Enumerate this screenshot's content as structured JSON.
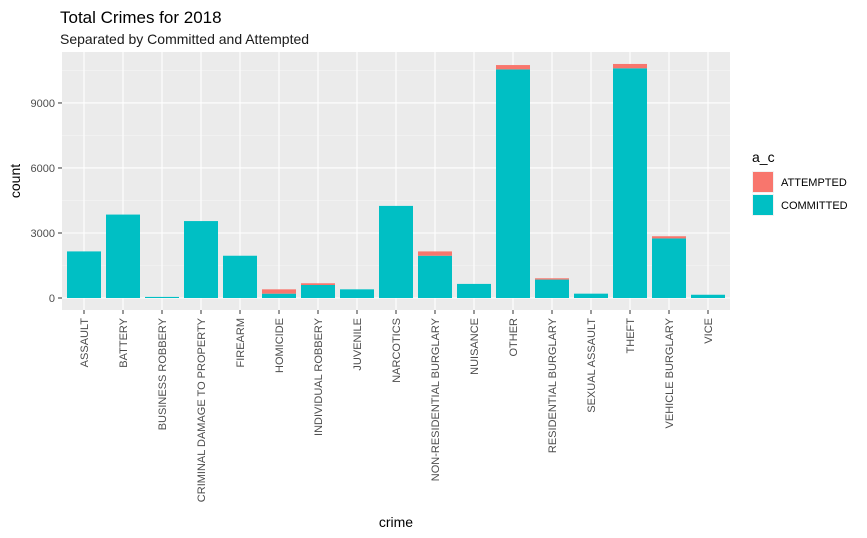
{
  "chart_data": {
    "type": "bar",
    "stacked": true,
    "title": "Total Crimes for 2018",
    "subtitle": "Separated by Committed and Attempted",
    "xlabel": "crime",
    "ylabel": "count",
    "ylim": [
      0,
      11200
    ],
    "yticks": [
      0,
      3000,
      6000,
      9000
    ],
    "grid": true,
    "legend": {
      "title": "a_c",
      "position": "right",
      "entries": [
        {
          "name": "ATTEMPTED",
          "color": "#F8766D"
        },
        {
          "name": "COMMITTED",
          "color": "#00BFC4"
        }
      ]
    },
    "categories": [
      "ASSAULT",
      "BATTERY",
      "BUSINESS ROBBERY",
      "CRIMINAL DAMAGE TO PROPERTY",
      "FIREARM",
      "HOMICIDE",
      "INDIVIDUAL ROBBERY",
      "JUVENILE",
      "NARCOTICS",
      "NON-RESIDENTIAL BURGLARY",
      "NUISANCE",
      "OTHER",
      "RESIDENTIAL BURGLARY",
      "SEXUAL ASSAULT",
      "THEFT",
      "VEHICLE BURGLARY",
      "VICE"
    ],
    "series": [
      {
        "name": "COMMITTED",
        "color": "#00BFC4",
        "values": [
          2150,
          3850,
          50,
          3550,
          1950,
          200,
          600,
          400,
          4250,
          1950,
          650,
          10550,
          850,
          200,
          10600,
          2750,
          150
        ]
      },
      {
        "name": "ATTEMPTED",
        "color": "#F8766D",
        "values": [
          0,
          0,
          0,
          0,
          0,
          200,
          80,
          0,
          0,
          200,
          0,
          200,
          60,
          0,
          200,
          100,
          0
        ]
      }
    ]
  }
}
